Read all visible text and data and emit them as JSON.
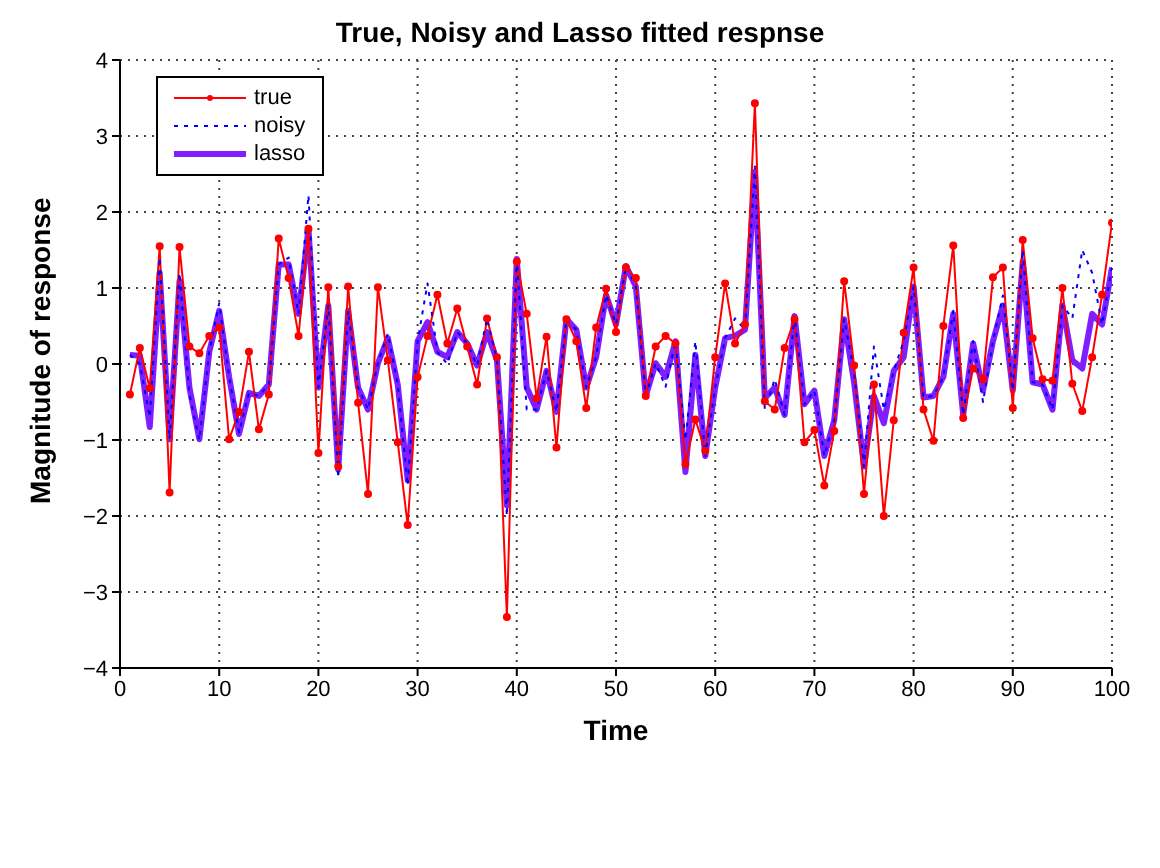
{
  "chart_data": {
    "type": "line",
    "title": "True, Noisy and Lasso fitted respnse",
    "xlabel": "Time",
    "ylabel": "Magnitude of response",
    "x": [
      1,
      2,
      3,
      4,
      5,
      6,
      7,
      8,
      9,
      10,
      11,
      12,
      13,
      14,
      15,
      16,
      17,
      18,
      19,
      20,
      21,
      22,
      23,
      24,
      25,
      26,
      27,
      28,
      29,
      30,
      31,
      32,
      33,
      34,
      35,
      36,
      37,
      38,
      39,
      40,
      41,
      42,
      43,
      44,
      45,
      46,
      47,
      48,
      49,
      50,
      51,
      52,
      53,
      54,
      55,
      56,
      57,
      58,
      59,
      60,
      61,
      62,
      63,
      64,
      65,
      66,
      67,
      68,
      69,
      70,
      71,
      72,
      73,
      74,
      75,
      76,
      77,
      78,
      79,
      80,
      81,
      82,
      83,
      84,
      85,
      86,
      87,
      88,
      89,
      90,
      91,
      92,
      93,
      94,
      95,
      96,
      97,
      98,
      99,
      100
    ],
    "series": [
      {
        "name": "true",
        "color": "#ff0000",
        "marker": "circle",
        "line_style": "solid",
        "values": [
          -0.4,
          0.21,
          -0.32,
          1.55,
          -1.69,
          1.54,
          0.23,
          0.14,
          0.37,
          0.48,
          -0.99,
          -0.63,
          0.16,
          -0.86,
          -0.4,
          1.65,
          1.13,
          0.37,
          1.78,
          -1.17,
          1.01,
          -1.35,
          1.02,
          -0.51,
          -1.71,
          1.01,
          0.05,
          -1.03,
          -2.12,
          -0.17,
          0.37,
          0.91,
          0.27,
          0.73,
          0.23,
          -0.27,
          0.6,
          0.09,
          -3.33,
          1.35,
          0.66,
          -0.45,
          0.36,
          -1.1,
          0.59,
          0.3,
          -0.58,
          0.48,
          0.99,
          0.42,
          1.27,
          1.13,
          -0.42,
          0.23,
          0.37,
          0.27,
          -1.32,
          -0.73,
          -1.14,
          0.09,
          1.06,
          0.27,
          0.52,
          3.43,
          -0.49,
          -0.6,
          0.21,
          0.59,
          -1.03,
          -0.87,
          -1.6,
          -0.88,
          1.09,
          -0.02,
          -1.71,
          -0.27,
          -2.0,
          -0.74,
          0.41,
          1.27,
          -0.6,
          -1.01,
          0.5,
          1.56,
          -0.71,
          -0.06,
          -0.2,
          1.14,
          1.27,
          -0.58,
          1.63,
          0.34,
          -0.2,
          -0.22,
          1.0,
          -0.26,
          -0.62,
          0.09,
          0.91,
          1.86
        ]
      },
      {
        "name": "noisy",
        "color": "#0000ff",
        "marker": "none",
        "line_style": "dotted",
        "values": [
          0.12,
          0.0,
          -0.7,
          1.4,
          -0.99,
          1.2,
          -0.4,
          -1.0,
          0.16,
          0.8,
          -0.17,
          -0.9,
          -0.38,
          -0.42,
          -0.27,
          1.31,
          1.4,
          0.66,
          2.22,
          -0.31,
          0.77,
          -1.5,
          0.7,
          -0.31,
          -0.6,
          0.01,
          0.4,
          -0.27,
          -1.6,
          0.3,
          1.06,
          0.16,
          0.0,
          0.42,
          0.27,
          -0.02,
          0.6,
          0.05,
          -2.0,
          1.38,
          -0.6,
          -0.6,
          -0.09,
          -0.63,
          0.59,
          0.45,
          -0.31,
          0.09,
          0.91,
          0.52,
          1.29,
          1.02,
          -0.42,
          0.01,
          -0.3,
          0.3,
          -1.0,
          0.3,
          -1.21,
          -0.31,
          0.34,
          0.6,
          0.45,
          2.6,
          -0.6,
          -0.2,
          -0.67,
          0.63,
          -0.53,
          -0.35,
          -1.21,
          -0.74,
          0.59,
          -0.1,
          -1.35,
          0.23,
          -0.6,
          -0.09,
          0.3,
          1.02,
          -0.44,
          -0.42,
          -0.17,
          0.7,
          -0.67,
          0.3,
          -0.5,
          0.3,
          0.9,
          -0.35,
          1.5,
          -0.24,
          -0.27,
          -0.6,
          0.77,
          0.6,
          1.5,
          1.2,
          0.52,
          1.27
        ]
      },
      {
        "name": "lasso",
        "color": "#7f1fff",
        "marker": "none",
        "line_style": "solid",
        "values": [
          0.12,
          0.11,
          -0.83,
          1.2,
          -0.99,
          1.09,
          -0.31,
          -0.99,
          0.16,
          0.7,
          -0.17,
          -0.92,
          -0.38,
          -0.42,
          -0.27,
          1.31,
          1.31,
          0.66,
          1.78,
          -0.31,
          0.77,
          -1.39,
          0.7,
          -0.31,
          -0.6,
          0.01,
          0.34,
          -0.27,
          -1.53,
          0.3,
          0.55,
          0.16,
          0.09,
          0.42,
          0.27,
          -0.02,
          0.42,
          0.05,
          -1.86,
          1.38,
          -0.31,
          -0.6,
          -0.09,
          -0.63,
          0.59,
          0.45,
          -0.31,
          0.09,
          0.91,
          0.52,
          1.29,
          1.02,
          -0.42,
          0.01,
          -0.17,
          0.3,
          -1.42,
          0.12,
          -1.21,
          -0.31,
          0.34,
          0.37,
          0.45,
          2.53,
          -0.45,
          -0.31,
          -0.67,
          0.63,
          -0.53,
          -0.35,
          -1.21,
          -0.74,
          0.59,
          -0.24,
          -1.35,
          -0.42,
          -0.78,
          -0.09,
          0.09,
          1.02,
          -0.44,
          -0.42,
          -0.17,
          0.66,
          -0.67,
          0.27,
          -0.35,
          0.3,
          0.77,
          -0.35,
          1.35,
          -0.24,
          -0.27,
          -0.6,
          0.77,
          0.05,
          -0.06,
          0.66,
          0.52,
          1.27
        ]
      }
    ],
    "xlim": [
      0,
      100
    ],
    "xticks": [
      0,
      10,
      20,
      30,
      40,
      50,
      60,
      70,
      80,
      90,
      100
    ],
    "ylim": [
      -4,
      4
    ],
    "yticks": [
      -4,
      -3,
      -2,
      -1,
      0,
      1,
      2,
      3,
      4
    ],
    "grid": true,
    "legend": "top left"
  }
}
